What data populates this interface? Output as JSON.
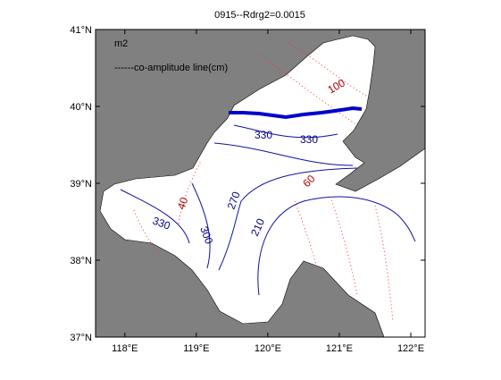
{
  "map": {
    "title": "0915--Rdrg2=0.0015",
    "constituent": "m2",
    "legend": "------co-amplitude line(cm)",
    "xlim": [
      117.59,
      122.2
    ],
    "ylim": [
      37,
      41
    ],
    "xticks": [
      {
        "value": 118,
        "label": "118°E"
      },
      {
        "value": 119,
        "label": "119°E"
      },
      {
        "value": 120,
        "label": "120°E"
      },
      {
        "value": 121,
        "label": "121°E"
      },
      {
        "value": 122,
        "label": "122°E"
      }
    ],
    "yticks": [
      {
        "value": 37,
        "label": "37°N"
      },
      {
        "value": 38,
        "label": "38°N"
      },
      {
        "value": 39,
        "label": "39°N"
      },
      {
        "value": 40,
        "label": "40°N"
      },
      {
        "value": 41,
        "label": "41°N"
      }
    ],
    "phase_labels": [
      "330",
      "330",
      "330",
      "300",
      "270",
      "210"
    ],
    "amplitude_labels": [
      "100",
      "40",
      "60"
    ]
  }
}
